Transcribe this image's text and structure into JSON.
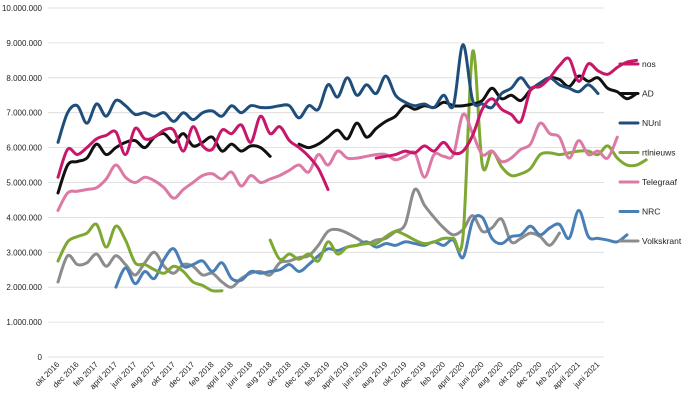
{
  "chart_data": {
    "type": "line",
    "title": "",
    "xlabel": "",
    "ylabel": "",
    "ylim": [
      0,
      10000000
    ],
    "grid": true,
    "legend_position": "right",
    "y_ticks": [
      "0",
      "1.000.000",
      "2.000.000",
      "3.000.000",
      "4.000.000",
      "5.000.000",
      "6.000.000",
      "7.000.000",
      "8.000.000",
      "9.000.000",
      "10.000.000"
    ],
    "x_labels": [
      "okt 2016",
      "dec 2016",
      "feb 2017",
      "april 2017",
      "juni 2017",
      "aug 2017",
      "okt 2017",
      "dec 2017",
      "feb 2018",
      "april 2018",
      "juni 2018",
      "aug 2018",
      "okt 2018",
      "dec 2018",
      "feb 2019",
      "april 2019",
      "juni 2019",
      "aug 2019",
      "okt 2019",
      "dec 2019",
      "feb 2020",
      "april 2020",
      "juni 2020",
      "aug 2020",
      "okt 2020",
      "dec 2020",
      "feb 2021",
      "april 2021",
      "juni 2021"
    ],
    "series": [
      {
        "name": "nos",
        "color": "#c8176a",
        "segments": [
          {
            "start": 0,
            "values": [
              5150000,
              5950000,
              5800000,
              6000000,
              6250000,
              6350000,
              6450000,
              5800000,
              6550000,
              6250000,
              6300000,
              6500000,
              6500000,
              5900000,
              6600000,
              6050000,
              5950000,
              6500000,
              6400000,
              6650000,
              6150000,
              6900000,
              6400000,
              6600000,
              6200000,
              6000000,
              5750000,
              5400000,
              4800000
            ]
          },
          {
            "start": 33,
            "values": [
              5700000,
              5750000,
              5800000,
              5900000,
              5850000,
              6050000,
              5900000,
              6150000,
              5850000,
              5900000,
              6350000,
              7100000,
              7400000,
              7100000,
              6950000,
              6750000,
              7650000,
              7750000,
              8000000,
              8350000,
              8550000,
              7900000,
              8400000,
              8200000,
              8100000,
              8300000,
              8450000,
              8500000
            ]
          }
        ]
      },
      {
        "name": "AD",
        "color": "#111111",
        "segments": [
          {
            "start": 0,
            "values": [
              4700000,
              5500000,
              5600000,
              5700000,
              6100000,
              5800000,
              6000000,
              6150000,
              6200000,
              6000000,
              6300000,
              6400000,
              6150000,
              6400000,
              6050000,
              6150000,
              6300000,
              5900000,
              6100000,
              5900000,
              6050000,
              6000000,
              5750000
            ]
          },
          {
            "start": 25,
            "values": [
              6100000,
              6000000,
              6100000,
              6300000,
              6500000,
              6250000,
              6700000,
              6300000,
              6550000,
              6750000,
              6900000,
              7200000,
              7100000,
              7200000,
              7150000,
              7300000,
              7200000,
              7200000,
              7250000,
              7350000,
              7700000,
              7400000,
              7500000,
              7350000,
              7650000,
              7850000,
              8000000,
              7950000,
              7750000,
              8050000,
              7900000,
              8000000,
              7700000,
              7600000,
              7400000,
              7550000
            ]
          }
        ]
      },
      {
        "name": "NUnl",
        "color": "#1f4e7a",
        "segments": [
          {
            "start": 0,
            "values": [
              6150000,
              7000000,
              7200000,
              6700000,
              7250000,
              6900000,
              7350000,
              7200000,
              6950000,
              7000000,
              6900000,
              7000000,
              6750000,
              7000000,
              6800000,
              7000000,
              7050000,
              6900000,
              7200000,
              7000000,
              7200000,
              7150000,
              7150000,
              7200000,
              7200000,
              6850000,
              7200000,
              7100000,
              7800000,
              7450000,
              8000000,
              7500000,
              7800000,
              7550000,
              8050000,
              7500000,
              7300000,
              7200000,
              7250000,
              7150000,
              7500000,
              7200000,
              8950000,
              7350000,
              7250000,
              7150000,
              7550000,
              7700000,
              8000000,
              7700000,
              7850000,
              8000000,
              7800000,
              7700000,
              7600000,
              7800000,
              7550000
            ]
          }
        ]
      },
      {
        "name": "rtlnieuws",
        "color": "#7ea832",
        "segments": [
          {
            "start": 0,
            "values": [
              2750000,
              3300000,
              3450000,
              3550000,
              3800000,
              3150000,
              3750000,
              3350000,
              2700000,
              2650000,
              2500000,
              2400000,
              2600000,
              2450000,
              2150000,
              2050000,
              1900000,
              1900000
            ]
          },
          {
            "start": 22,
            "values": [
              3350000,
              2800000,
              2950000,
              2800000,
              2950000,
              2750000,
              3300000,
              2950000,
              3150000,
              3200000,
              3250000,
              3250000,
              3450000,
              3600000,
              3500000,
              3350000,
              3250000,
              3300000,
              3400000,
              3400000,
              3450000,
              8750000,
              5500000,
              5900000,
              5450000,
              5200000,
              5250000,
              5400000,
              5800000,
              5850000,
              5800000,
              5850000,
              5900000,
              5900000,
              5800000,
              6050000,
              5700000,
              5500000,
              5500000,
              5650000
            ]
          }
        ]
      },
      {
        "name": "Telegraaf",
        "color": "#dc7aa6",
        "segments": [
          {
            "start": 0,
            "values": [
              4200000,
              4700000,
              4750000,
              4800000,
              4850000,
              5100000,
              5500000,
              5150000,
              5000000,
              5150000,
              5050000,
              4850000,
              4550000,
              4800000,
              5000000,
              5200000,
              5250000,
              5100000,
              5300000,
              4900000,
              5200000,
              5000000,
              5100000,
              5200000,
              5350000,
              5500000,
              5300000,
              5800000,
              5500000,
              5900000,
              5700000,
              5700000,
              5750000,
              5800000,
              5800000,
              5650000,
              5750000,
              5850000,
              5150000,
              5800000,
              5750000,
              5800000,
              6950000,
              6400000,
              5800000,
              5900000,
              5600000,
              5700000,
              5950000,
              6100000,
              6700000,
              6400000,
              6300000,
              5700000,
              6200000,
              5800000,
              5900000,
              5700000,
              6300000
            ]
          }
        ]
      },
      {
        "name": "NRC",
        "color": "#4a7fb5",
        "segments": [
          {
            "start": 6,
            "values": [
              2000000,
              2550000,
              2100000,
              2450000,
              2250000,
              2800000,
              3100000,
              2600000,
              2650000,
              2750000,
              2450000,
              2700000,
              2250000,
              2200000,
              2450000,
              2400000,
              2450000,
              2500000,
              2650000,
              2450000,
              2650000,
              2900000,
              3100000,
              3050000,
              3150000,
              3200000,
              3300000,
              3150000,
              3250000,
              3200000,
              3300000,
              3250000,
              3200000,
              3300000,
              3200000,
              3350000,
              2850000,
              3900000,
              4000000,
              3400000,
              3250000,
              3450000,
              3500000,
              3750000,
              3500000,
              3700000,
              3800000,
              3400000,
              4200000,
              3450000,
              3400000,
              3350000,
              3300000,
              3500000
            ]
          }
        ]
      },
      {
        "name": "Volkskrant",
        "color": "#8c8c8c",
        "segments": [
          {
            "start": 0,
            "values": [
              2150000,
              2900000,
              2650000,
              2700000,
              2950000,
              2600000,
              2900000,
              2650000,
              2350000,
              2700000,
              3000000,
              2600000,
              2400000,
              2650000,
              2600000,
              2350000,
              2400000,
              2150000,
              2000000,
              2250000,
              2400000,
              2450000,
              2350000,
              2700000,
              2750000,
              2850000,
              2900000,
              3200000,
              3600000,
              3650000,
              3550000,
              3400000,
              3250000,
              3350000,
              3400000,
              3600000,
              3800000,
              4800000,
              4350000,
              4000000,
              3700000,
              3500000,
              3650000,
              4050000,
              3600000,
              3700000,
              3950000,
              3300000,
              3400000,
              3550000,
              3450000,
              3200000,
              3550000
            ]
          }
        ]
      }
    ]
  }
}
